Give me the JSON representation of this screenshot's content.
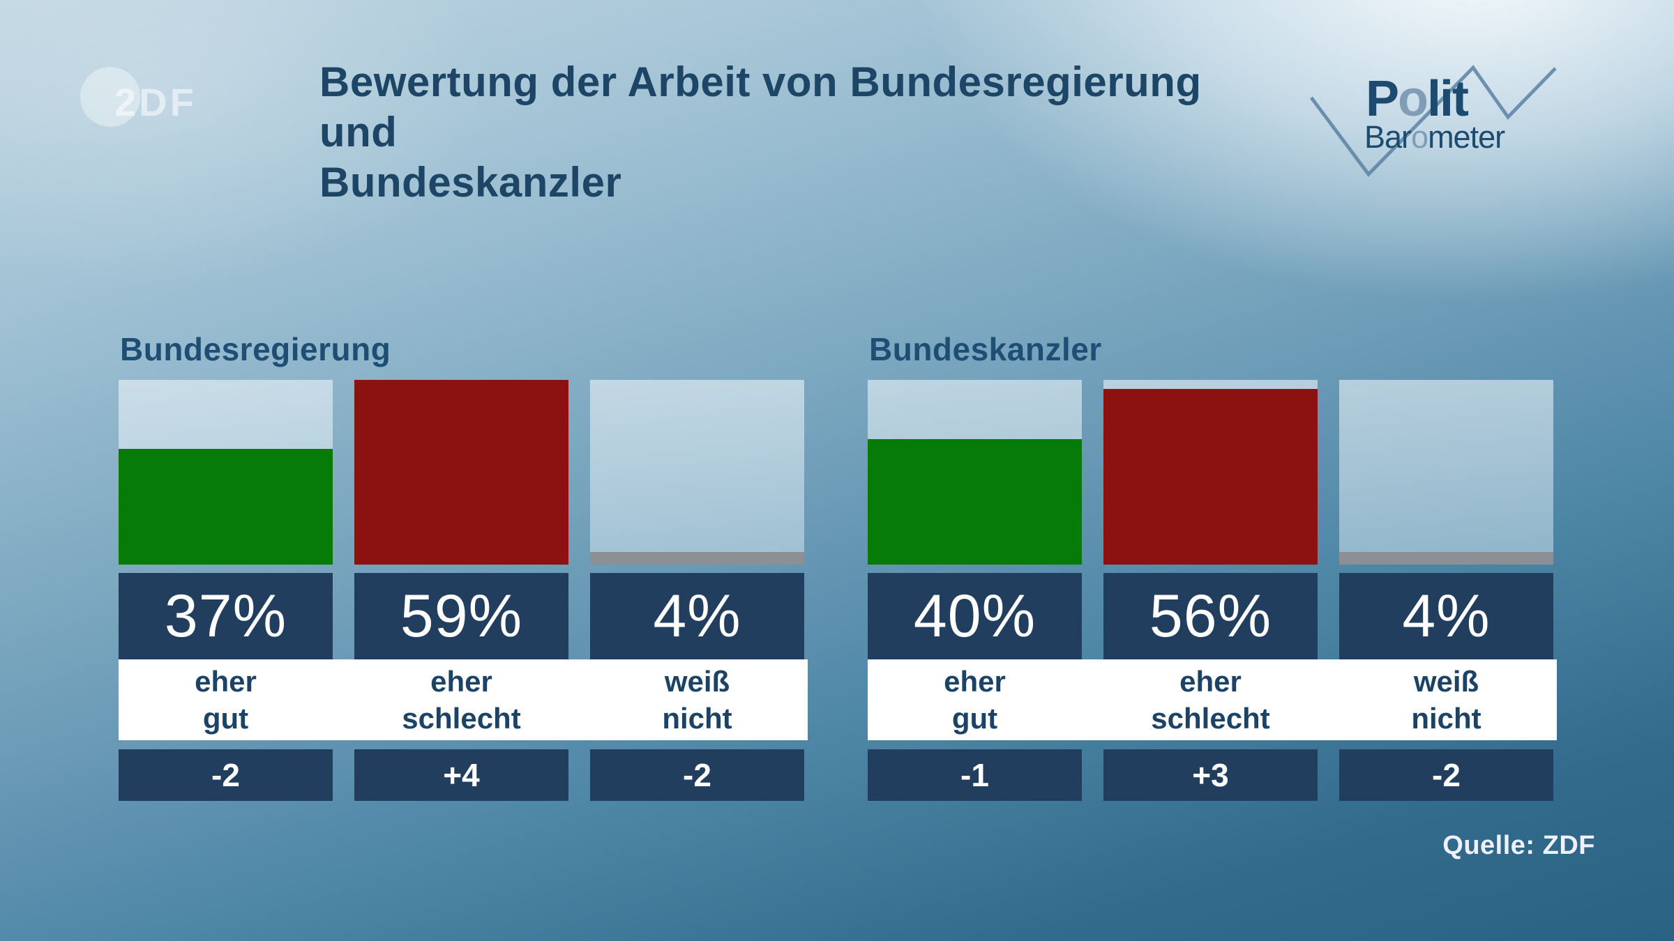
{
  "header": {
    "title_lines": [
      "Bewertung der Arbeit von Bundesregierung und",
      "Bundeskanzler"
    ]
  },
  "branding": {
    "zdf_wordmark": "2DF",
    "polit": [
      "P",
      "o",
      "lit"
    ],
    "barometer": [
      "Bar",
      "o",
      "meter"
    ]
  },
  "theme": {
    "band_navy": "#223e5e",
    "text_navy": "#1c4366",
    "title_navy": "#1d4565",
    "logo_navy": "#1d4b70",
    "logo_light_blue": "#7f9db6",
    "zigzag_blue": "#5b81a3",
    "background_top": "#e9eef3",
    "background_bottom": "#2a6284",
    "white": "#ffffff"
  },
  "chart_data": {
    "type": "bar",
    "title": "Bewertung der Arbeit von Bundesregierung und Bundeskanzler",
    "unit": "%",
    "scale_max": 59,
    "legend_position": "none",
    "grid": false,
    "palette": {
      "positive": "#077b07",
      "negative": "#8c1111",
      "neutral": "#8c9094"
    },
    "groups": [
      {
        "label": "Bundesregierung",
        "bars": [
          {
            "category": "eher gut",
            "category_lines": [
              "eher",
              "gut"
            ],
            "value": 37,
            "display": "37%",
            "change": -2,
            "change_display": "-2",
            "color": "positive"
          },
          {
            "category": "eher schlecht",
            "category_lines": [
              "eher",
              "schlecht"
            ],
            "value": 59,
            "display": "59%",
            "change": 4,
            "change_display": "+4",
            "color": "negative"
          },
          {
            "category": "weiß nicht",
            "category_lines": [
              "weiß",
              "nicht"
            ],
            "value": 4,
            "display": "4%",
            "change": -2,
            "change_display": "-2",
            "color": "neutral"
          }
        ]
      },
      {
        "label": "Bundeskanzler",
        "bars": [
          {
            "category": "eher gut",
            "category_lines": [
              "eher",
              "gut"
            ],
            "value": 40,
            "display": "40%",
            "change": -1,
            "change_display": "-1",
            "color": "positive"
          },
          {
            "category": "eher schlecht",
            "category_lines": [
              "eher",
              "schlecht"
            ],
            "value": 56,
            "display": "56%",
            "change": 3,
            "change_display": "+3",
            "color": "negative"
          },
          {
            "category": "weiß nicht",
            "category_lines": [
              "weiß",
              "nicht"
            ],
            "value": 4,
            "display": "4%",
            "change": -2,
            "change_display": "-2",
            "color": "neutral"
          }
        ]
      }
    ],
    "source": "Quelle: ZDF"
  }
}
